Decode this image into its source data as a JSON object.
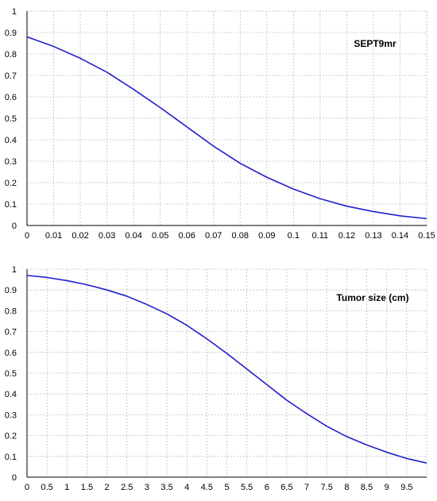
{
  "chart_data": [
    {
      "type": "line",
      "title": "",
      "xlabel": "",
      "ylabel": "",
      "annotation": "SEPT9mr",
      "xlim": [
        0,
        0.15
      ],
      "ylim": [
        0,
        1
      ],
      "x_ticks": [
        "0",
        "0.01",
        "0.02",
        "0.03",
        "0.04",
        "0.05",
        "0.06",
        "0.07",
        "0.08",
        "0.09",
        "0.1",
        "0.11",
        "0.12",
        "0.13",
        "0.14",
        "0.15"
      ],
      "y_ticks": [
        "0",
        "0.1",
        "0.2",
        "0.3",
        "0.4",
        "0.5",
        "0.6",
        "0.7",
        "0.8",
        "0.9",
        "1"
      ],
      "grid": true,
      "color": "#1f1fcc",
      "series": [
        {
          "x": [
            0,
            0.01,
            0.02,
            0.03,
            0.04,
            0.05,
            0.06,
            0.07,
            0.08,
            0.09,
            0.1,
            0.11,
            0.12,
            0.13,
            0.14,
            0.15
          ],
          "y": [
            0.88,
            0.835,
            0.78,
            0.715,
            0.635,
            0.55,
            0.46,
            0.37,
            0.29,
            0.225,
            0.17,
            0.125,
            0.09,
            0.065,
            0.045,
            0.032
          ]
        }
      ]
    },
    {
      "type": "line",
      "title": "",
      "xlabel": "",
      "ylabel": "",
      "annotation": "Tumor size (cm)",
      "xlim": [
        0,
        10
      ],
      "ylim": [
        0,
        1
      ],
      "x_ticks": [
        "0",
        "0.5",
        "1",
        "1.5",
        "2",
        "2.5",
        "3",
        "3.5",
        "4",
        "4.5",
        "5",
        "5.5",
        "6",
        "6.5",
        "7",
        "7.5",
        "8",
        "8.5",
        "9",
        "9.5"
      ],
      "y_ticks": [
        "0",
        "0.1",
        "0.2",
        "0.3",
        "0.4",
        "0.5",
        "0.6",
        "0.7",
        "0.8",
        "0.9",
        "1"
      ],
      "grid": true,
      "color": "#1f1fcc",
      "series": [
        {
          "x": [
            0,
            0.5,
            1,
            1.5,
            2,
            2.5,
            3,
            3.5,
            4,
            4.5,
            5,
            5.5,
            6,
            6.5,
            7,
            7.5,
            8,
            8.5,
            9,
            9.5,
            10
          ],
          "y": [
            0.97,
            0.96,
            0.945,
            0.925,
            0.9,
            0.87,
            0.83,
            0.785,
            0.73,
            0.665,
            0.595,
            0.52,
            0.445,
            0.37,
            0.305,
            0.245,
            0.195,
            0.155,
            0.12,
            0.09,
            0.068
          ]
        }
      ]
    }
  ]
}
